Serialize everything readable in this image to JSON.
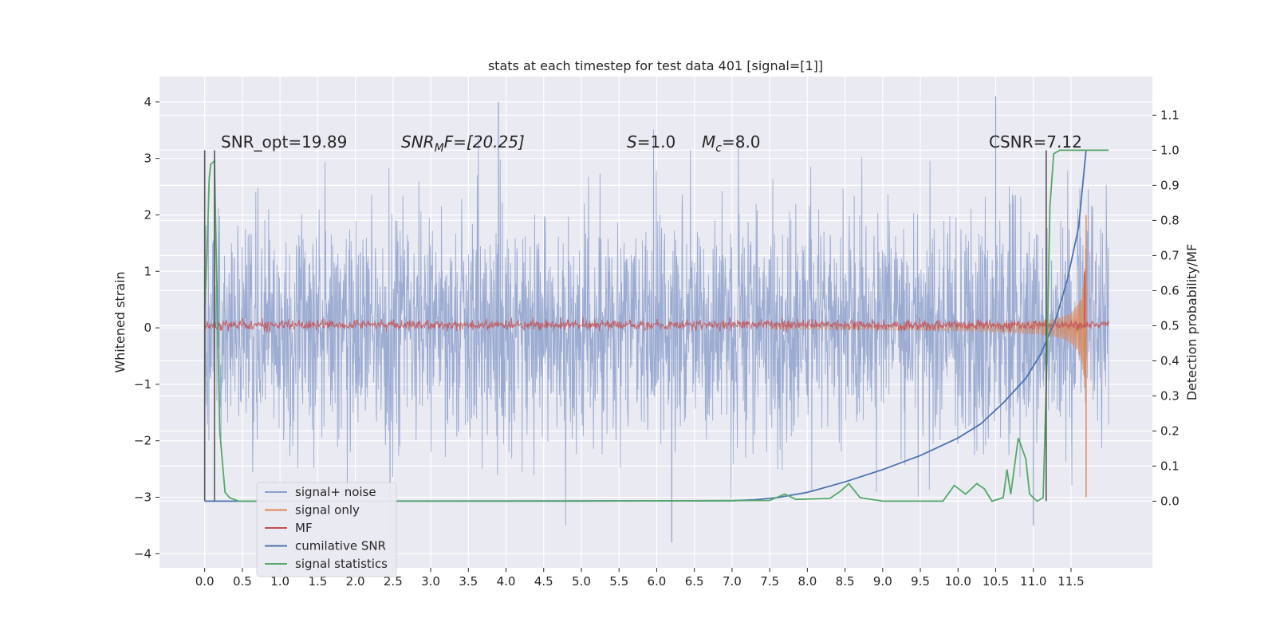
{
  "chart_data": {
    "type": "line",
    "title": "stats at each timestep for test data 401 [signal=[1]]",
    "ylabel": "Whitened strain",
    "y2label": "Detection probability/MF",
    "xlim": [
      -0.6,
      12.58
    ],
    "ylim": [
      -4.25,
      4.45
    ],
    "y2lim": [
      -0.19,
      1.21
    ],
    "xticks": [
      "0.0",
      "0.5",
      "1.0",
      "1.5",
      "2.0",
      "2.5",
      "3.0",
      "3.5",
      "4.0",
      "4.5",
      "5.0",
      "5.5",
      "6.0",
      "6.5",
      "7.0",
      "7.5",
      "8.0",
      "8.5",
      "9.0",
      "9.5",
      "10.0",
      "10.5",
      "11.0",
      "11.5"
    ],
    "yticks": [
      "4",
      "3",
      "2",
      "1",
      "0",
      "−1",
      "−2",
      "−3",
      "−4"
    ],
    "y2ticks": [
      "1.1",
      "1.0",
      "0.9",
      "0.8",
      "0.7",
      "0.6",
      "0.5",
      "0.4",
      "0.3",
      "0.2",
      "0.1",
      "0.0"
    ],
    "grid": true,
    "legend_position": "lower-left",
    "annotations": {
      "snr_opt": "SNR_opt=19.89",
      "snr_mf_sym": "SNR",
      "snr_mf_sub": "M",
      "snr_mf_rest": "F=[20.25]",
      "s_sym": "S",
      "s_val": "=1.0",
      "mc_sym": "M",
      "mc_sub": "c",
      "mc_val": "=8.0",
      "csnr": "CSNR=7.12"
    },
    "vertical_markers_x": [
      0.0,
      0.13,
      11.17
    ],
    "series": [
      {
        "name": "signal+ noise",
        "color": "#8da0cb",
        "axis": "left",
        "kind": "noise_band",
        "x_range": [
          0.0,
          12.0
        ],
        "band_sigma": 1.0,
        "peak_values": [
          4.0,
          -3.8,
          4.1,
          -3.5
        ]
      },
      {
        "name": "signal only",
        "color": "#dd8452",
        "axis": "left",
        "kind": "chirp",
        "x_range": [
          7.5,
          11.7
        ],
        "envelope_end": 2.0
      },
      {
        "name": "MF",
        "color": "#c44e52",
        "axis": "left",
        "kind": "flat_noise",
        "x_range": [
          0.0,
          12.0
        ],
        "level": 0.05,
        "spike": {
          "x": 11.68,
          "y": 1.0
        }
      },
      {
        "name": "cumilative SNR",
        "color": "#4c72b0",
        "axis": "right",
        "points": [
          [
            0.0,
            0.0
          ],
          [
            1.0,
            0.0
          ],
          [
            7.0,
            0.001
          ],
          [
            7.3,
            0.004
          ],
          [
            7.6,
            0.01
          ],
          [
            8.0,
            0.025
          ],
          [
            8.5,
            0.055
          ],
          [
            9.0,
            0.09
          ],
          [
            9.5,
            0.13
          ],
          [
            10.0,
            0.18
          ],
          [
            10.3,
            0.22
          ],
          [
            10.6,
            0.28
          ],
          [
            10.9,
            0.35
          ],
          [
            11.1,
            0.42
          ],
          [
            11.3,
            0.52
          ],
          [
            11.45,
            0.63
          ],
          [
            11.6,
            0.78
          ],
          [
            11.7,
            1.0
          ]
        ]
      },
      {
        "name": "signal statistics",
        "color": "#55a868",
        "axis": "right",
        "points": [
          [
            0.0,
            0.55
          ],
          [
            0.03,
            0.7
          ],
          [
            0.06,
            0.92
          ],
          [
            0.08,
            0.96
          ],
          [
            0.13,
            0.97
          ],
          [
            0.15,
            0.74
          ],
          [
            0.2,
            0.2
          ],
          [
            0.27,
            0.025
          ],
          [
            0.33,
            0.01
          ],
          [
            0.45,
            0.0
          ],
          [
            5.0,
            0.0
          ],
          [
            7.5,
            0.002
          ],
          [
            7.7,
            0.02
          ],
          [
            7.85,
            0.005
          ],
          [
            8.3,
            0.008
          ],
          [
            8.45,
            0.03
          ],
          [
            8.55,
            0.05
          ],
          [
            8.7,
            0.01
          ],
          [
            9.0,
            0.0
          ],
          [
            9.8,
            0.0
          ],
          [
            9.95,
            0.045
          ],
          [
            10.1,
            0.02
          ],
          [
            10.25,
            0.05
          ],
          [
            10.35,
            0.035
          ],
          [
            10.45,
            0.0
          ],
          [
            10.6,
            0.01
          ],
          [
            10.65,
            0.09
          ],
          [
            10.7,
            0.02
          ],
          [
            10.8,
            0.18
          ],
          [
            10.9,
            0.12
          ],
          [
            10.95,
            0.02
          ],
          [
            11.05,
            0.0
          ],
          [
            11.13,
            0.01
          ],
          [
            11.18,
            0.4
          ],
          [
            11.22,
            0.84
          ],
          [
            11.27,
            0.99
          ],
          [
            11.35,
            1.0
          ],
          [
            12.0,
            1.0
          ]
        ]
      }
    ]
  }
}
